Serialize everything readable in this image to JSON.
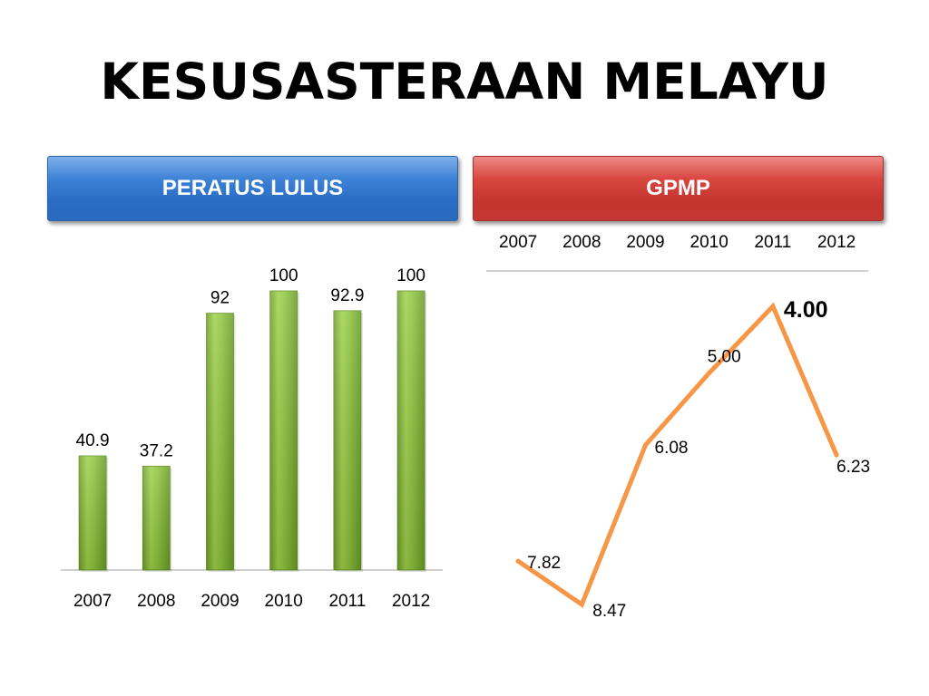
{
  "title": "KESUSASTERAAN MELAYU",
  "left_header": "PERATUS LULUS",
  "right_header": "GPMP",
  "colors": {
    "left_header": "#3d82d6",
    "right_header": "#d8463f",
    "bar": "#8cc43c",
    "line": "#f79646"
  },
  "chart_data": [
    {
      "type": "bar",
      "title": "PERATUS LULUS",
      "categories": [
        "2007",
        "2008",
        "2009",
        "2010",
        "2011",
        "2012"
      ],
      "values": [
        40.9,
        37.2,
        92,
        100,
        92.9,
        100
      ],
      "data_labels": [
        "40.9",
        "37.2",
        "92",
        "100",
        "92.9",
        "100"
      ],
      "ylim": [
        0,
        100
      ],
      "grid": false,
      "legend": "none"
    },
    {
      "type": "line",
      "title": "GPMP",
      "categories": [
        "2007",
        "2008",
        "2009",
        "2010",
        "2011",
        "2012"
      ],
      "values": [
        7.82,
        8.47,
        6.08,
        5.0,
        4.0,
        6.23
      ],
      "data_labels": [
        "7.82",
        "8.47",
        "6.08",
        "5.00",
        "4.00",
        "6.23"
      ],
      "y_axis_reversed": true,
      "category_axis_position": "top",
      "grid": false,
      "legend": "none"
    }
  ]
}
